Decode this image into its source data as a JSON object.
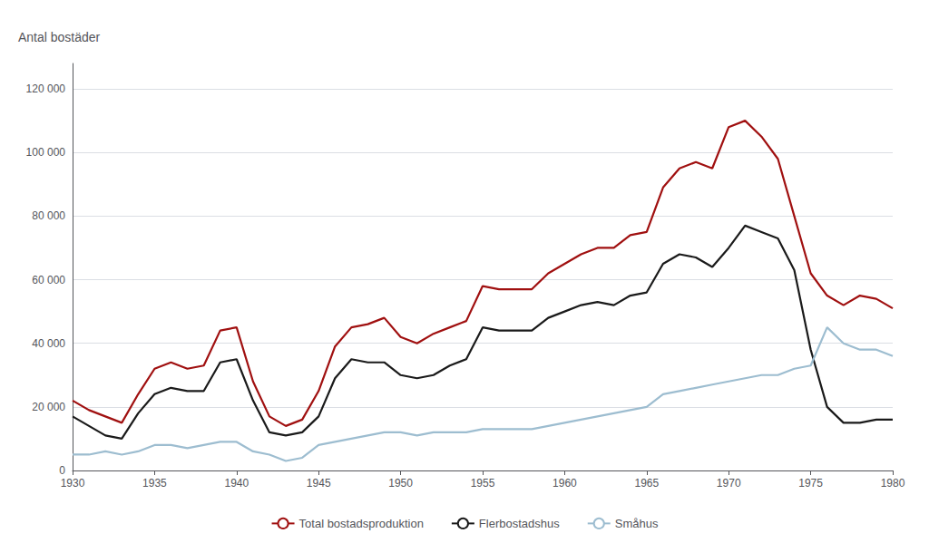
{
  "chart_data": {
    "type": "line",
    "y_label": "Antal bostäder",
    "x": [
      1930,
      1931,
      1932,
      1933,
      1934,
      1935,
      1936,
      1937,
      1938,
      1939,
      1940,
      1941,
      1942,
      1943,
      1944,
      1945,
      1946,
      1947,
      1948,
      1949,
      1950,
      1951,
      1952,
      1953,
      1954,
      1955,
      1956,
      1957,
      1958,
      1959,
      1960,
      1961,
      1962,
      1963,
      1964,
      1965,
      1966,
      1967,
      1968,
      1969,
      1970,
      1971,
      1972,
      1973,
      1974,
      1975,
      1976,
      1977,
      1978,
      1979,
      1980
    ],
    "series": [
      {
        "name": "Total bostadsproduktion",
        "color": "#a01010",
        "values": [
          22000,
          19000,
          17000,
          15000,
          24000,
          32000,
          34000,
          32000,
          33000,
          44000,
          45000,
          28000,
          17000,
          14000,
          16000,
          25000,
          39000,
          45000,
          46000,
          48000,
          42000,
          40000,
          43000,
          45000,
          47000,
          58000,
          57000,
          57000,
          57000,
          62000,
          65000,
          68000,
          70000,
          70000,
          74000,
          75000,
          89000,
          95000,
          97000,
          95000,
          108000,
          110000,
          105000,
          98000,
          80000,
          62000,
          55000,
          52000,
          55000,
          54000,
          51000
        ]
      },
      {
        "name": "Flerbostadshus",
        "color": "#1a1a1a",
        "values": [
          17000,
          14000,
          11000,
          10000,
          18000,
          24000,
          26000,
          25000,
          25000,
          34000,
          35000,
          22000,
          12000,
          11000,
          12000,
          17000,
          29000,
          35000,
          34000,
          34000,
          30000,
          29000,
          30000,
          33000,
          35000,
          45000,
          44000,
          44000,
          44000,
          48000,
          50000,
          52000,
          53000,
          52000,
          55000,
          56000,
          65000,
          68000,
          67000,
          64000,
          70000,
          77000,
          75000,
          73000,
          63000,
          38000,
          20000,
          15000,
          15000,
          16000,
          16000
        ]
      },
      {
        "name": "Småhus",
        "color": "#9dbdd0",
        "values": [
          5000,
          5000,
          6000,
          5000,
          6000,
          8000,
          8000,
          7000,
          8000,
          9000,
          9000,
          6000,
          5000,
          3000,
          4000,
          8000,
          9000,
          10000,
          11000,
          12000,
          12000,
          11000,
          12000,
          12000,
          12000,
          13000,
          13000,
          13000,
          13000,
          14000,
          15000,
          16000,
          17000,
          18000,
          19000,
          20000,
          24000,
          25000,
          26000,
          27000,
          28000,
          29000,
          30000,
          30000,
          32000,
          33000,
          45000,
          40000,
          38000,
          38000,
          36000
        ]
      }
    ],
    "xlim": [
      1930,
      1980
    ],
    "xticks": [
      1930,
      1935,
      1940,
      1945,
      1950,
      1955,
      1960,
      1965,
      1970,
      1975,
      1980
    ],
    "ylim": [
      0,
      128000
    ],
    "yticks": [
      0,
      {
        "value": 20000,
        "label": "20 000"
      },
      {
        "value": 40000,
        "label": "40 000"
      },
      {
        "value": 60000,
        "label": "60 000"
      },
      {
        "value": 80000,
        "label": "80 000"
      },
      {
        "value": 100000,
        "label": "100 000"
      },
      {
        "value": 120000,
        "label": "120 000"
      }
    ],
    "grid": true,
    "legend": "bottom"
  }
}
